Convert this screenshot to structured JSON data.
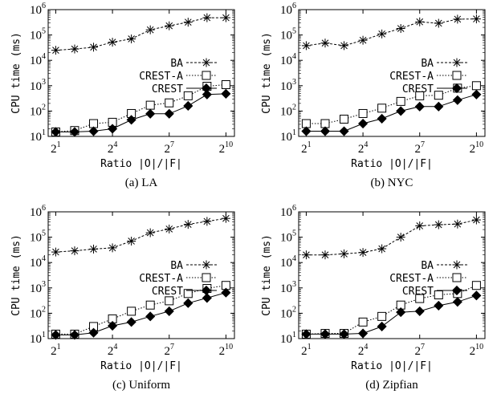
{
  "chart_data": [
    {
      "type": "line",
      "caption": "(a) LA",
      "xlabel": "Ratio |O|/|F|",
      "ylabel": "CPU time (ms)",
      "x_ticks": [
        "2^1",
        "2^4",
        "2^7",
        "2^10"
      ],
      "y_ticks": [
        "10^1",
        "10^2",
        "10^3",
        "10^4",
        "10^5",
        "10^6"
      ],
      "yscale": "log",
      "ylim": [
        10,
        1000000
      ],
      "x": [
        2,
        4,
        8,
        16,
        32,
        64,
        128,
        256,
        512,
        1024
      ],
      "legend_position": "right-middle",
      "series": [
        {
          "name": "BA",
          "marker": "asterisk",
          "dash": "3,2",
          "values": [
            25000,
            28000,
            33000,
            52000,
            70000,
            160000,
            230000,
            320000,
            480000,
            480000
          ]
        },
        {
          "name": "CREST-A",
          "marker": "square-open",
          "dash": "1.5,2",
          "values": [
            15,
            17,
            32,
            36,
            80,
            170,
            210,
            400,
            950,
            1100
          ]
        },
        {
          "name": "CREST",
          "marker": "diamond-filled",
          "dash": "",
          "values": [
            15,
            15,
            16,
            20,
            45,
            78,
            78,
            160,
            450,
            480
          ]
        }
      ]
    },
    {
      "type": "line",
      "caption": "(b) NYC",
      "xlabel": "Ratio |O|/|F|",
      "ylabel": "CPU time (ms)",
      "x_ticks": [
        "2^1",
        "2^4",
        "2^7",
        "2^10"
      ],
      "y_ticks": [
        "10^1",
        "10^2",
        "10^3",
        "10^4",
        "10^5",
        "10^6"
      ],
      "yscale": "log",
      "ylim": [
        10,
        1000000
      ],
      "x": [
        2,
        4,
        8,
        16,
        32,
        64,
        128,
        256,
        512,
        1024
      ],
      "legend_position": "right-middle",
      "series": [
        {
          "name": "BA",
          "marker": "asterisk",
          "dash": "3,2",
          "values": [
            38000,
            48000,
            38000,
            62000,
            110000,
            180000,
            330000,
            290000,
            420000,
            430000
          ]
        },
        {
          "name": "CREST-A",
          "marker": "square-open",
          "dash": "1.5,2",
          "values": [
            32,
            32,
            48,
            80,
            130,
            240,
            400,
            420,
            800,
            1000
          ]
        },
        {
          "name": "CREST",
          "marker": "diamond-filled",
          "dash": "",
          "values": [
            16,
            16,
            16,
            32,
            50,
            100,
            150,
            150,
            270,
            450
          ]
        }
      ]
    },
    {
      "type": "line",
      "caption": "(c) Uniform",
      "xlabel": "Ratio |O|/|F|",
      "ylabel": "CPU time (ms)",
      "x_ticks": [
        "2^1",
        "2^4",
        "2^7",
        "2^10"
      ],
      "y_ticks": [
        "10^1",
        "10^2",
        "10^3",
        "10^4",
        "10^5",
        "10^6"
      ],
      "yscale": "log",
      "ylim": [
        10,
        1000000
      ],
      "x": [
        2,
        4,
        8,
        16,
        32,
        64,
        128,
        256,
        512,
        1024
      ],
      "legend_position": "right-middle",
      "series": [
        {
          "name": "BA",
          "marker": "asterisk",
          "dash": "3,2",
          "values": [
            26000,
            29000,
            34000,
            38000,
            70000,
            150000,
            210000,
            320000,
            420000,
            550000
          ]
        },
        {
          "name": "CREST-A",
          "marker": "square-open",
          "dash": "1.5,2",
          "values": [
            15,
            15,
            30,
            60,
            120,
            210,
            310,
            600,
            950,
            1250
          ]
        },
        {
          "name": "CREST",
          "marker": "diamond-filled",
          "dash": "",
          "values": [
            14,
            14,
            17,
            32,
            45,
            75,
            120,
            250,
            400,
            650
          ]
        }
      ]
    },
    {
      "type": "line",
      "caption": "(d) Zipfian",
      "xlabel": "Ratio |O|/|F|",
      "ylabel": "CPU time (ms)",
      "x_ticks": [
        "2^1",
        "2^4",
        "2^7",
        "2^10"
      ],
      "y_ticks": [
        "10^1",
        "10^2",
        "10^3",
        "10^4",
        "10^5",
        "10^6"
      ],
      "yscale": "log",
      "ylim": [
        10,
        1000000
      ],
      "x": [
        2,
        4,
        8,
        16,
        32,
        64,
        128,
        256,
        512,
        1024
      ],
      "legend_position": "right-middle",
      "series": [
        {
          "name": "BA",
          "marker": "asterisk",
          "dash": "3,2",
          "values": [
            20000,
            20000,
            22000,
            25000,
            35000,
            100000,
            280000,
            310000,
            330000,
            480000
          ]
        },
        {
          "name": "CREST-A",
          "marker": "square-open",
          "dash": "1.5,2",
          "values": [
            15,
            16,
            16,
            45,
            75,
            210,
            380,
            530,
            600,
            1250
          ]
        },
        {
          "name": "CREST",
          "marker": "diamond-filled",
          "dash": "",
          "values": [
            15,
            15,
            15,
            16,
            30,
            110,
            120,
            200,
            280,
            500
          ]
        }
      ]
    }
  ]
}
